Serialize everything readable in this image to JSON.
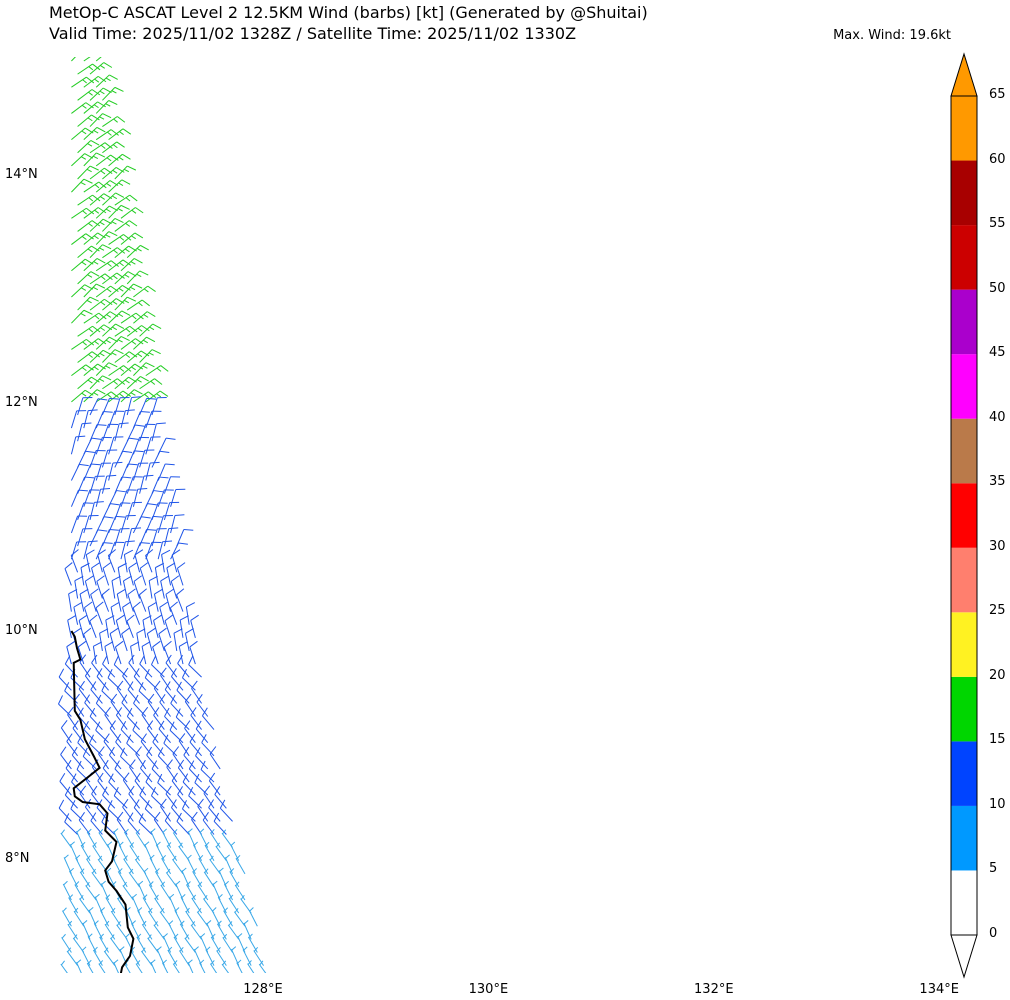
{
  "title": {
    "line1": "MetOp-C ASCAT Level 2 12.5KM Wind (barbs) [kt] (Generated by @Shuitai)",
    "line2": "Valid Time: 2025/11/02 1328Z / Satellite Time: 2025/11/02 1330Z"
  },
  "max_wind": "Max. Wind: 19.6kt",
  "map": {
    "lon_range": [
      126.3,
      134.3
    ],
    "lat_range": [
      6.9,
      15.0
    ],
    "lat_labels": [
      {
        "value": 14,
        "text": "14°N"
      },
      {
        "value": 12,
        "text": "12°N"
      },
      {
        "value": 10,
        "text": "10°N"
      },
      {
        "value": 8,
        "text": "8°N"
      }
    ],
    "lon_labels": [
      {
        "value": 128,
        "text": "128°E"
      },
      {
        "value": 130,
        "text": "130°E"
      },
      {
        "value": 132,
        "text": "132°E"
      },
      {
        "value": 134,
        "text": "134°E"
      }
    ],
    "swath_left_edge_lon": 126.3,
    "swath_right_edge": [
      {
        "lat": 15.0,
        "lon": 126.55
      },
      {
        "lat": 12.0,
        "lon": 127.0
      },
      {
        "lat": 10.0,
        "lon": 127.4
      },
      {
        "lat": 8.5,
        "lon": 127.7
      },
      {
        "lat": 6.9,
        "lon": 128.1
      }
    ],
    "coastline": [
      [
        126.3,
        10.0
      ],
      [
        126.33,
        9.95
      ],
      [
        126.35,
        9.85
      ],
      [
        126.38,
        9.75
      ],
      [
        126.32,
        9.72
      ],
      [
        126.33,
        9.3
      ],
      [
        126.38,
        9.22
      ],
      [
        126.42,
        9.05
      ],
      [
        126.5,
        8.9
      ],
      [
        126.55,
        8.8
      ],
      [
        126.45,
        8.72
      ],
      [
        126.32,
        8.62
      ],
      [
        126.33,
        8.55
      ],
      [
        126.4,
        8.5
      ],
      [
        126.55,
        8.48
      ],
      [
        126.62,
        8.4
      ],
      [
        126.6,
        8.25
      ],
      [
        126.7,
        8.15
      ],
      [
        126.66,
        7.98
      ],
      [
        126.6,
        7.9
      ],
      [
        126.63,
        7.8
      ],
      [
        126.7,
        7.72
      ],
      [
        126.78,
        7.6
      ],
      [
        126.8,
        7.4
      ],
      [
        126.85,
        7.3
      ],
      [
        126.82,
        7.15
      ],
      [
        126.75,
        7.05
      ],
      [
        126.72,
        6.9
      ]
    ],
    "wind_fields": [
      {
        "lat_from": 15.0,
        "lat_to": 11.9,
        "direction_deg": 50,
        "speed_kt": 16,
        "color": "#22cc22"
      },
      {
        "lat_from": 12.2,
        "lat_to": 10.6,
        "direction_deg": 20,
        "speed_kt": 12,
        "color": "#1f55e8"
      },
      {
        "lat_from": 10.6,
        "lat_to": 9.6,
        "direction_deg": 345,
        "speed_kt": 11,
        "color": "#1f55e8"
      },
      {
        "lat_from": 9.6,
        "lat_to": 8.2,
        "direction_deg": 320,
        "speed_kt": 11,
        "color": "#1f55e8"
      },
      {
        "lat_from": 8.2,
        "lat_to": 6.9,
        "direction_deg": 330,
        "speed_kt": 9,
        "color": "#3aa8e8"
      }
    ]
  },
  "colorbar": {
    "levels": [
      0,
      5,
      10,
      15,
      20,
      25,
      30,
      35,
      40,
      45,
      50,
      55,
      60,
      65
    ],
    "colors": [
      "#ffffff",
      "#0099ff",
      "#0044ff",
      "#00d600",
      "#fff222",
      "#ff7f6e",
      "#ff0000",
      "#ba7a4a",
      "#ff00ff",
      "#aa00cc",
      "#cc0000",
      "#a80000",
      "#ff9900"
    ],
    "under_color": "#ffffff",
    "over_color": "#ff9900"
  }
}
